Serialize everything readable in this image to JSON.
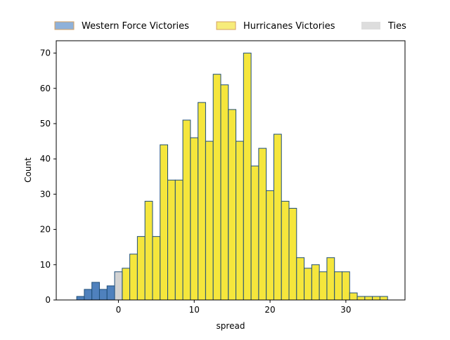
{
  "chart_data": {
    "type": "bar",
    "subtype": "histogram",
    "xlabel": "spread",
    "ylabel": "Count",
    "xlim": [
      -8.2,
      37.8
    ],
    "ylim": [
      0,
      73.5
    ],
    "x_ticks": [
      0,
      10,
      20,
      30
    ],
    "y_ticks": [
      0,
      10,
      20,
      30,
      40,
      50,
      60,
      70
    ],
    "bin_width": 1,
    "legend_position": "top, outside plot",
    "grid": false,
    "colors": {
      "western_force": "#4f81bd",
      "hurricanes": "#f5e63c",
      "ties": "#d3d3d3",
      "edge": "#1f4e79",
      "legend_western_force": "#8fb1d9",
      "legend_hurricanes": "#f7ec7a",
      "legend_ties": "#dddddd",
      "legend_edge": "#d6a060"
    },
    "series": [
      {
        "name": "Western Force Victories",
        "key": "western_force",
        "x": [
          -5,
          -4,
          -3,
          -2,
          -1
        ],
        "values": [
          1,
          3,
          5,
          3,
          4
        ]
      },
      {
        "name": "Hurricanes Victories",
        "key": "hurricanes",
        "x": [
          1,
          2,
          3,
          4,
          5,
          6,
          7,
          8,
          9,
          10,
          11,
          12,
          13,
          14,
          15,
          16,
          17,
          18,
          19,
          20,
          21,
          22,
          23,
          24,
          25,
          26,
          27,
          28,
          29,
          30,
          31,
          32,
          33,
          34,
          35
        ],
        "values": [
          9,
          13,
          18,
          28,
          18,
          44,
          34,
          34,
          51,
          46,
          56,
          45,
          64,
          61,
          54,
          45,
          70,
          38,
          43,
          31,
          47,
          28,
          26,
          12,
          9,
          10,
          8,
          12,
          8,
          8,
          2,
          1,
          1,
          1,
          1
        ]
      },
      {
        "name": "Ties",
        "key": "ties",
        "x": [
          0
        ],
        "values": [
          8
        ]
      }
    ]
  }
}
